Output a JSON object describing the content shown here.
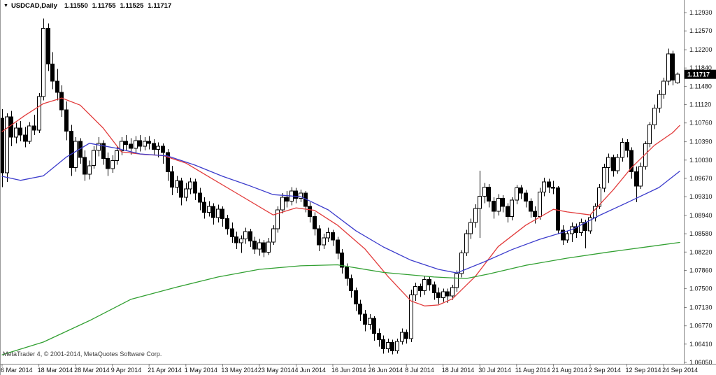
{
  "header": {
    "dropdown_icon": "▼",
    "symbol": "USDCAD,Daily",
    "open": "1.11550",
    "high": "1.11755",
    "low": "1.11525",
    "close": "1.11717"
  },
  "watermark": "MetaTrader 4, © 2001-2014, MetaQuotes Software Corp.",
  "chart_data": {
    "type": "candlestick",
    "title": "USDCAD,Daily",
    "symbol": "USDCAD",
    "timeframe": "Daily",
    "grid": false,
    "ylim": [
      1.0605,
      1.1293
    ],
    "current_quote": {
      "open": 1.1155,
      "high": 1.11755,
      "low": 1.11525,
      "close": 1.11717
    },
    "last_price_label": "1.11717",
    "y_axis": {
      "labels": [
        "1.12930",
        "1.12570",
        "1.12200",
        "1.11840",
        "1.11480",
        "1.11120",
        "1.10760",
        "1.10390",
        "1.10030",
        "1.09670",
        "1.09310",
        "1.08940",
        "1.08580",
        "1.08220",
        "1.07860",
        "1.07500",
        "1.07130",
        "1.06770",
        "1.06410",
        "1.06050"
      ]
    },
    "x_axis": {
      "ticks": [
        {
          "index": 0,
          "label": "6 Mar 2014"
        },
        {
          "index": 8,
          "label": "18 Mar 2014"
        },
        {
          "index": 16,
          "label": "28 Mar 2014"
        },
        {
          "index": 24,
          "label": "9 Apr 2014"
        },
        {
          "index": 32,
          "label": "21 Apr 2014"
        },
        {
          "index": 40,
          "label": "1 May 2014"
        },
        {
          "index": 48,
          "label": "13 May 2014"
        },
        {
          "index": 56,
          "label": "23 May 2014"
        },
        {
          "index": 64,
          "label": "4 Jun 2014"
        },
        {
          "index": 72,
          "label": "16 Jun 2014"
        },
        {
          "index": 80,
          "label": "26 Jun 2014"
        },
        {
          "index": 88,
          "label": "8 Jul 2014"
        },
        {
          "index": 96,
          "label": "18 Jul 2014"
        },
        {
          "index": 104,
          "label": "30 Jul 2014"
        },
        {
          "index": 112,
          "label": "11 Aug 2014"
        },
        {
          "index": 120,
          "label": "21 Aug 2014"
        },
        {
          "index": 128,
          "label": "2 Sep 2014"
        },
        {
          "index": 136,
          "label": "12 Sep 2014"
        },
        {
          "index": 144,
          "label": "24 Sep 2014"
        }
      ]
    },
    "style": {
      "bull_fill": "#ffffff",
      "bear_fill": "#000000",
      "outline": "#000000",
      "axis_line": "#808080",
      "left_border": "#9a9a9a",
      "badge_bg": "#000000",
      "badge_text": "#ffffff"
    },
    "moving_averages": [
      {
        "name": "ma-fast-red",
        "color": "#e23c3c",
        "points": [
          [
            0,
            1.1059
          ],
          [
            5,
            1.1091
          ],
          [
            9,
            1.1114
          ],
          [
            13,
            1.1125
          ],
          [
            17,
            1.1111
          ],
          [
            22,
            1.1066
          ],
          [
            26,
            1.1019
          ],
          [
            31,
            1.1014
          ],
          [
            35,
            1.1012
          ],
          [
            40,
            1.0997
          ],
          [
            45,
            1.097
          ],
          [
            51,
            1.0938
          ],
          [
            59,
            1.0895
          ],
          [
            64,
            1.0909
          ],
          [
            68,
            1.0904
          ],
          [
            73,
            1.0875
          ],
          [
            79,
            1.0828
          ],
          [
            84,
            1.0774
          ],
          [
            89,
            1.0726
          ],
          [
            92,
            1.0716
          ],
          [
            95,
            1.0718
          ],
          [
            98,
            1.073
          ],
          [
            103,
            1.0774
          ],
          [
            108,
            1.0833
          ],
          [
            114,
            1.0875
          ],
          [
            120,
            1.0906
          ],
          [
            123,
            1.0901
          ],
          [
            128,
            1.0895
          ],
          [
            133,
            1.0944
          ],
          [
            137,
            1.0988
          ],
          [
            142,
            1.1032
          ],
          [
            146,
            1.1057
          ],
          [
            147.5,
            1.1071
          ]
        ]
      },
      {
        "name": "ma-medium-blue",
        "color": "#3c3ccc",
        "points": [
          [
            0,
            1.0971
          ],
          [
            4,
            1.0963
          ],
          [
            9,
            1.0972
          ],
          [
            14,
            1.1009
          ],
          [
            19,
            1.1036
          ],
          [
            25,
            1.1026
          ],
          [
            30,
            1.1015
          ],
          [
            36,
            1.1011
          ],
          [
            42,
            1.0993
          ],
          [
            48,
            1.0971
          ],
          [
            54,
            1.0952
          ],
          [
            59,
            1.0935
          ],
          [
            65,
            1.0931
          ],
          [
            71,
            1.0905
          ],
          [
            77,
            1.0864
          ],
          [
            83,
            1.0832
          ],
          [
            89,
            1.0806
          ],
          [
            95,
            1.0788
          ],
          [
            99,
            1.0781
          ],
          [
            105,
            1.0803
          ],
          [
            111,
            1.0827
          ],
          [
            117,
            1.0847
          ],
          [
            124,
            1.0866
          ],
          [
            130,
            1.0894
          ],
          [
            136,
            1.0919
          ],
          [
            143,
            1.0949
          ],
          [
            147.5,
            1.0981
          ]
        ]
      },
      {
        "name": "ma-slow-green",
        "color": "#32a032",
        "points": [
          [
            0,
            1.062
          ],
          [
            9,
            1.0645
          ],
          [
            19,
            1.0687
          ],
          [
            28,
            1.0729
          ],
          [
            38,
            1.0753
          ],
          [
            47,
            1.0773
          ],
          [
            56,
            1.0788
          ],
          [
            65,
            1.0795
          ],
          [
            73,
            1.0797
          ],
          [
            83,
            1.0782
          ],
          [
            94,
            1.0773
          ],
          [
            101,
            1.077
          ],
          [
            106,
            1.0779
          ],
          [
            114,
            1.0796
          ],
          [
            123,
            1.081
          ],
          [
            132,
            1.0822
          ],
          [
            141,
            1.0833
          ],
          [
            147.5,
            1.0841
          ]
        ]
      }
    ],
    "candles": [
      [
        1.1085,
        1.1103,
        1.095,
        1.0978
      ],
      [
        1.0978,
        1.1095,
        1.096,
        1.1088
      ],
      [
        1.1088,
        1.11,
        1.103,
        1.1048
      ],
      [
        1.1048,
        1.1076,
        1.1036,
        1.1066
      ],
      [
        1.1066,
        1.108,
        1.104,
        1.1052
      ],
      [
        1.1052,
        1.1068,
        1.1028,
        1.104
      ],
      [
        1.104,
        1.1078,
        1.1034,
        1.107
      ],
      [
        1.107,
        1.1092,
        1.1052,
        1.1062
      ],
      [
        1.1062,
        1.1135,
        1.1056,
        1.1128
      ],
      [
        1.1128,
        1.1281,
        1.112,
        1.1262
      ],
      [
        1.1262,
        1.1272,
        1.1178,
        1.1192
      ],
      [
        1.1192,
        1.1215,
        1.1142,
        1.1158
      ],
      [
        1.1158,
        1.1182,
        1.112,
        1.1136
      ],
      [
        1.1136,
        1.115,
        1.1088,
        1.1102
      ],
      [
        1.1102,
        1.1118,
        1.1042,
        1.106
      ],
      [
        1.106,
        1.1072,
        1.0972,
        1.0988
      ],
      [
        1.0988,
        1.1048,
        1.098,
        1.104
      ],
      [
        1.104,
        1.1046,
        1.0996,
        1.1008
      ],
      [
        1.1008,
        1.1022,
        1.0962,
        1.0975
      ],
      [
        1.0975,
        1.1002,
        1.0965,
        1.0992
      ],
      [
        1.0992,
        1.103,
        1.0986,
        1.1022
      ],
      [
        1.1022,
        1.1048,
        1.101,
        1.1036
      ],
      [
        1.1036,
        1.1042,
        1.0994,
        1.1006
      ],
      [
        1.1006,
        1.1018,
        1.0972,
        1.0986
      ],
      [
        1.0986,
        1.1012,
        1.0978,
        1.1002
      ],
      [
        1.1002,
        1.103,
        1.0994,
        1.1021
      ],
      [
        1.1021,
        1.1048,
        1.1012,
        1.104
      ],
      [
        1.104,
        1.1052,
        1.1022,
        1.1034
      ],
      [
        1.1034,
        1.1046,
        1.1014,
        1.1026
      ],
      [
        1.1026,
        1.105,
        1.1018,
        1.1041
      ],
      [
        1.1041,
        1.1052,
        1.102,
        1.103
      ],
      [
        1.103,
        1.1048,
        1.1022,
        1.104
      ],
      [
        1.104,
        1.105,
        1.1024,
        1.1036
      ],
      [
        1.1036,
        1.1044,
        1.1012,
        1.1024
      ],
      [
        1.1024,
        1.1038,
        1.1008,
        1.103
      ],
      [
        1.103,
        1.1036,
        1.0996,
        1.1018
      ],
      [
        1.1018,
        1.1025,
        1.0962,
        1.098
      ],
      [
        1.098,
        1.0992,
        1.0934,
        1.095
      ],
      [
        1.095,
        1.0972,
        1.0938,
        1.0962
      ],
      [
        1.0962,
        1.0968,
        1.0914,
        1.093
      ],
      [
        1.093,
        1.0958,
        1.0922,
        1.0946
      ],
      [
        1.0946,
        1.0968,
        1.0936,
        1.096
      ],
      [
        1.096,
        1.0966,
        1.0924,
        1.0938
      ],
      [
        1.0938,
        1.0948,
        1.0904,
        1.092
      ],
      [
        1.092,
        1.093,
        1.0888,
        1.09
      ],
      [
        1.09,
        1.0922,
        1.0892,
        1.0912
      ],
      [
        1.0912,
        1.0918,
        1.0876,
        1.089
      ],
      [
        1.089,
        1.0915,
        1.088,
        1.0906
      ],
      [
        1.0906,
        1.0912,
        1.0872,
        1.0888
      ],
      [
        1.0888,
        1.0895,
        1.0856,
        1.0868
      ],
      [
        1.0868,
        1.088,
        1.084,
        1.0852
      ],
      [
        1.0852,
        1.0862,
        1.0828,
        1.084
      ],
      [
        1.084,
        1.0855,
        1.082,
        1.0848
      ],
      [
        1.0848,
        1.087,
        1.0838,
        1.0862
      ],
      [
        1.0862,
        1.0868,
        1.0832,
        1.0844
      ],
      [
        1.0844,
        1.0852,
        1.0818,
        1.0828
      ],
      [
        1.0828,
        1.0848,
        1.0815,
        1.084
      ],
      [
        1.084,
        1.0846,
        1.0812,
        1.0822
      ],
      [
        1.0822,
        1.085,
        1.0816,
        1.0842
      ],
      [
        1.0842,
        1.0875,
        1.0836,
        1.0868
      ],
      [
        1.0868,
        1.0912,
        1.086,
        1.0905
      ],
      [
        1.0905,
        1.0938,
        1.0898,
        1.093
      ],
      [
        1.093,
        1.0942,
        1.091,
        1.0922
      ],
      [
        1.0922,
        1.095,
        1.0914,
        1.0942
      ],
      [
        1.0942,
        1.0948,
        1.0918,
        1.0928
      ],
      [
        1.0928,
        1.0945,
        1.092,
        1.0938
      ],
      [
        1.0938,
        1.0942,
        1.09,
        1.0912
      ],
      [
        1.0912,
        1.092,
        1.088,
        1.0892
      ],
      [
        1.0892,
        1.09,
        1.0855,
        1.0868
      ],
      [
        1.0868,
        1.0875,
        1.0824,
        1.0836
      ],
      [
        1.0836,
        1.0858,
        1.0828,
        1.085
      ],
      [
        1.085,
        1.087,
        1.0842,
        1.086
      ],
      [
        1.086,
        1.0866,
        1.0834,
        1.0846
      ],
      [
        1.0846,
        1.0852,
        1.0808,
        1.082
      ],
      [
        1.082,
        1.0828,
        1.078,
        1.0792
      ],
      [
        1.0792,
        1.08,
        1.0756,
        1.077
      ],
      [
        1.077,
        1.0778,
        1.0732,
        1.0746
      ],
      [
        1.0746,
        1.0752,
        1.0706,
        1.072
      ],
      [
        1.072,
        1.0728,
        1.0686,
        1.07
      ],
      [
        1.07,
        1.0708,
        1.0666,
        1.068
      ],
      [
        1.068,
        1.07,
        1.067,
        1.0692
      ],
      [
        1.0692,
        1.0696,
        1.0648,
        1.0662
      ],
      [
        1.0662,
        1.0672,
        1.0636,
        1.065
      ],
      [
        1.065,
        1.0658,
        1.0622,
        1.0632
      ],
      [
        1.0632,
        1.0652,
        1.0624,
        1.0644
      ],
      [
        1.0644,
        1.065,
        1.0621,
        1.0628
      ],
      [
        1.0628,
        1.0652,
        1.0622,
        1.0646
      ],
      [
        1.0646,
        1.0672,
        1.064,
        1.0664
      ],
      [
        1.0664,
        1.067,
        1.0642,
        1.0652
      ],
      [
        1.0652,
        1.0748,
        1.0645,
        1.0738
      ],
      [
        1.0738,
        1.0762,
        1.0726,
        1.0754
      ],
      [
        1.0754,
        1.076,
        1.0734,
        1.0746
      ],
      [
        1.0746,
        1.0775,
        1.0738,
        1.0768
      ],
      [
        1.0768,
        1.0774,
        1.0746,
        1.0758
      ],
      [
        1.0758,
        1.0764,
        1.0728,
        1.0742
      ],
      [
        1.0742,
        1.0752,
        1.072,
        1.0732
      ],
      [
        1.0732,
        1.075,
        1.0724,
        1.0744
      ],
      [
        1.0744,
        1.075,
        1.0722,
        1.0736
      ],
      [
        1.0736,
        1.0758,
        1.0728,
        1.0752
      ],
      [
        1.0752,
        1.0786,
        1.0744,
        1.078
      ],
      [
        1.078,
        1.0826,
        1.0772,
        1.082
      ],
      [
        1.082,
        1.0866,
        1.0814,
        1.0858
      ],
      [
        1.0858,
        1.0888,
        1.0848,
        1.088
      ],
      [
        1.088,
        1.0916,
        1.087,
        1.0908
      ],
      [
        1.0908,
        1.0982,
        1.085,
        1.0932
      ],
      [
        1.0932,
        1.0958,
        1.0918,
        1.095
      ],
      [
        1.095,
        1.0956,
        1.091,
        1.0922
      ],
      [
        1.0922,
        1.093,
        1.0888,
        1.0902
      ],
      [
        1.0902,
        1.0936,
        1.0894,
        1.0928
      ],
      [
        1.0928,
        1.0934,
        1.09,
        1.0912
      ],
      [
        1.0912,
        1.0918,
        1.088,
        1.0892
      ],
      [
        1.0892,
        1.093,
        1.0884,
        1.0924
      ],
      [
        1.0924,
        1.0954,
        1.0916,
        1.0948
      ],
      [
        1.0948,
        1.0954,
        1.0926,
        1.0938
      ],
      [
        1.0938,
        1.0944,
        1.091,
        1.0922
      ],
      [
        1.0922,
        1.0928,
        1.089,
        1.0902
      ],
      [
        1.0902,
        1.0912,
        1.0878,
        1.0892
      ],
      [
        1.0892,
        1.0948,
        1.0886,
        1.094
      ],
      [
        1.094,
        1.0968,
        1.0932,
        1.096
      ],
      [
        1.096,
        1.0966,
        1.0938,
        1.095
      ],
      [
        1.095,
        1.0962,
        1.0936,
        1.0948
      ],
      [
        1.0948,
        1.0952,
        1.0858,
        1.0865
      ],
      [
        1.0865,
        1.0875,
        1.0836,
        1.0846
      ],
      [
        1.0846,
        1.0864,
        1.084,
        1.0858
      ],
      [
        1.0858,
        1.088,
        1.0842,
        1.0872
      ],
      [
        1.0872,
        1.0878,
        1.085,
        1.086
      ],
      [
        1.086,
        1.0888,
        1.0854,
        1.088
      ],
      [
        1.088,
        1.0886,
        1.0829,
        1.0864
      ],
      [
        1.0864,
        1.0896,
        1.0858,
        1.089
      ],
      [
        1.089,
        1.0918,
        1.0882,
        1.0912
      ],
      [
        1.0912,
        1.0956,
        1.0906,
        1.0948
      ],
      [
        1.0948,
        1.0996,
        1.094,
        1.0988
      ],
      [
        1.0988,
        1.1016,
        1.0958,
        1.1008
      ],
      [
        1.1008,
        1.1014,
        1.097,
        1.0982
      ],
      [
        1.0982,
        1.1015,
        1.0976,
        1.1008
      ],
      [
        1.1008,
        1.1046,
        1.1,
        1.1038
      ],
      [
        1.1038,
        1.1044,
        1.1008,
        1.1022
      ],
      [
        1.1022,
        1.1028,
        1.0966,
        1.098
      ],
      [
        1.098,
        1.099,
        1.092,
        1.0952
      ],
      [
        1.0952,
        1.0998,
        1.0946,
        1.099
      ],
      [
        1.099,
        1.104,
        1.0984,
        1.1035
      ],
      [
        1.1035,
        1.1078,
        1.1028,
        1.1072
      ],
      [
        1.1072,
        1.1112,
        1.1064,
        1.1105
      ],
      [
        1.1105,
        1.114,
        1.1096,
        1.1132
      ],
      [
        1.1132,
        1.1165,
        1.1124,
        1.1158
      ],
      [
        1.1158,
        1.1222,
        1.115,
        1.1212
      ],
      [
        1.1212,
        1.1218,
        1.115,
        1.116
      ],
      [
        1.1155,
        1.11755,
        1.11525,
        1.11717
      ]
    ]
  }
}
